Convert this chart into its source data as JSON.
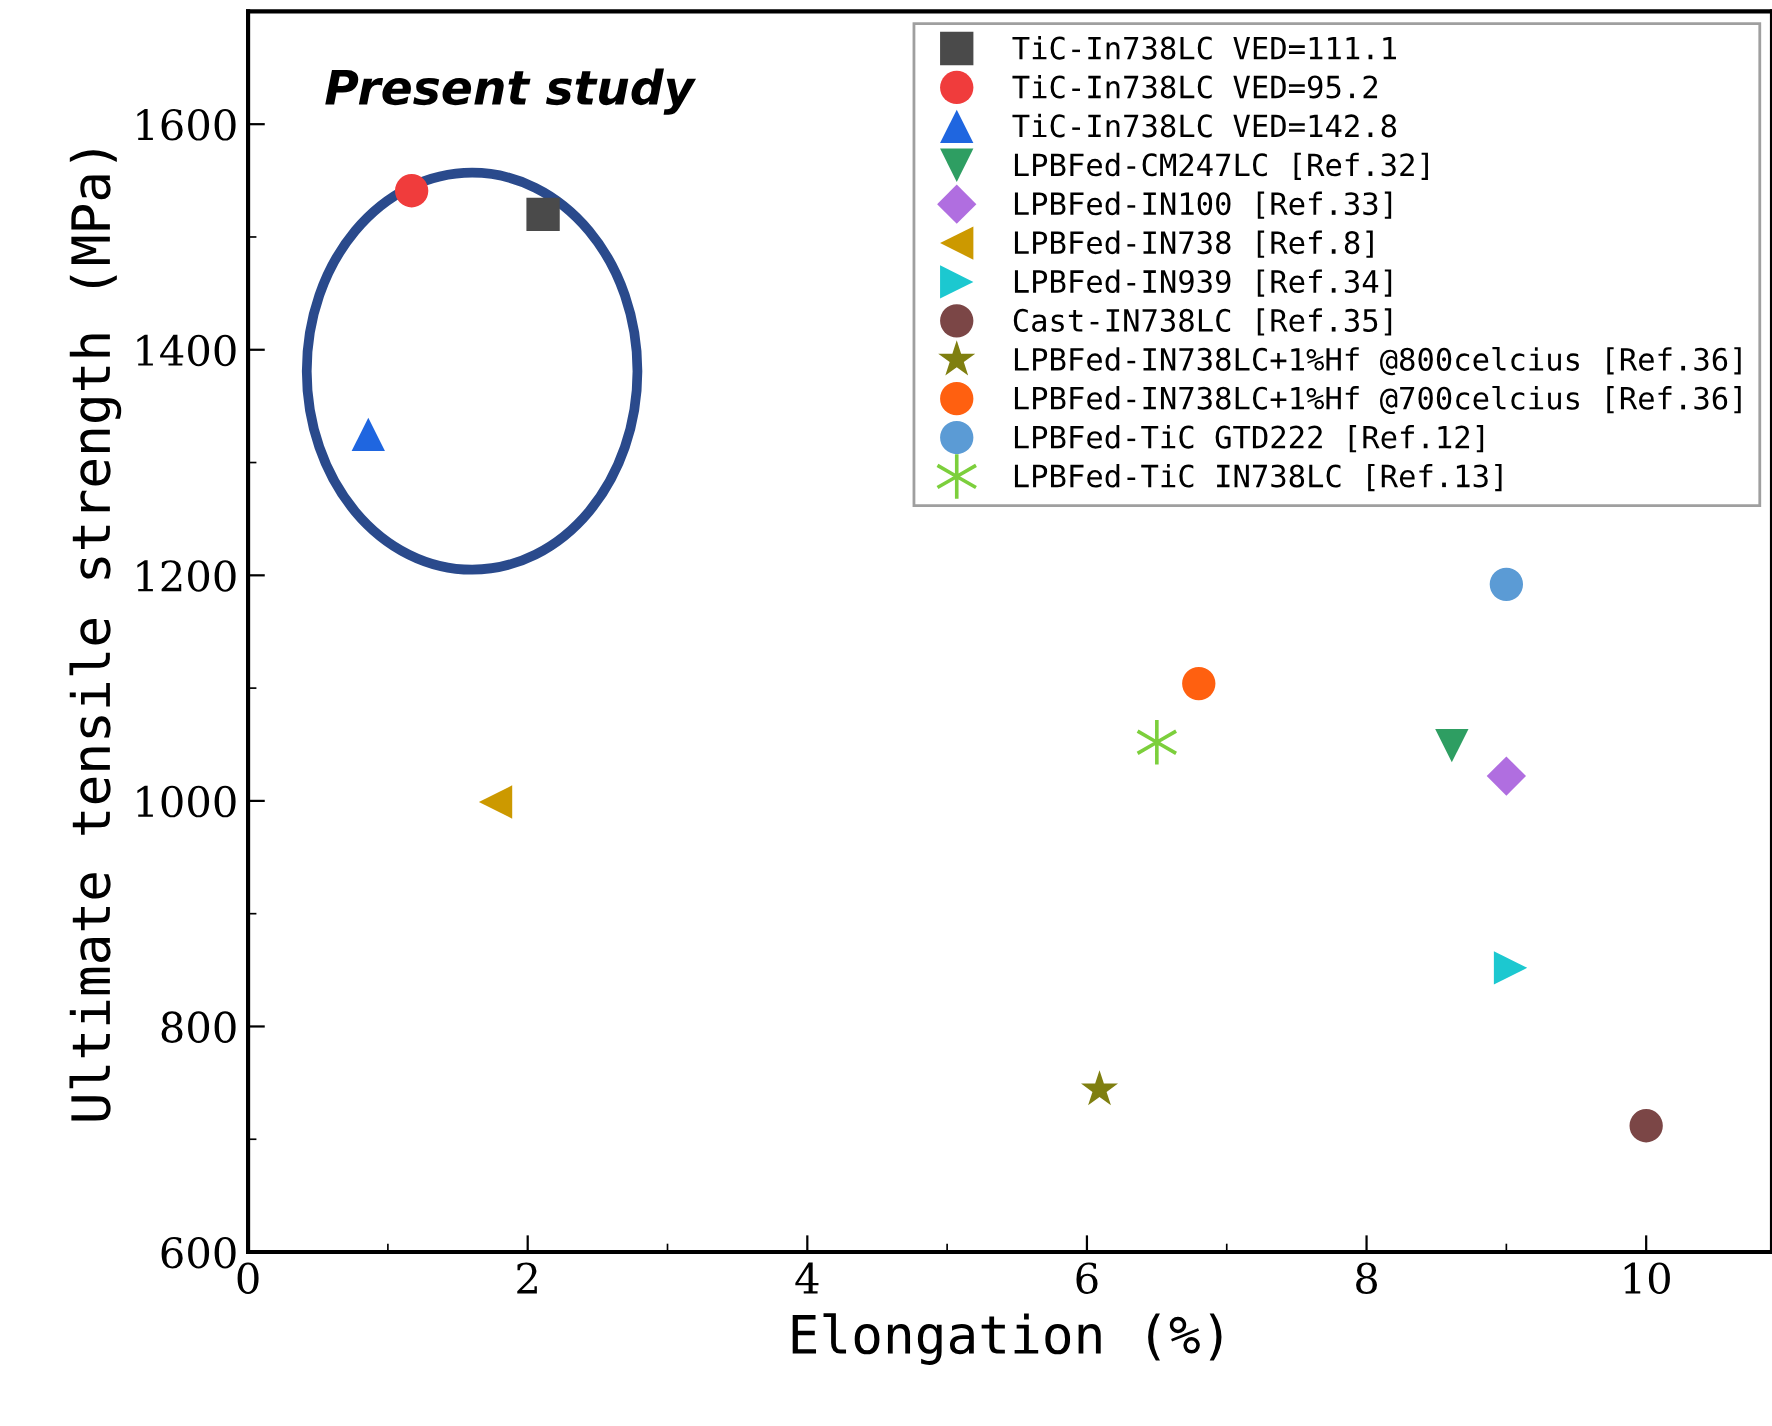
{
  "chart_data": {
    "type": "scatter",
    "xlabel": "Elongation (%)",
    "ylabel": "Ultimate tensile strength (MPa)",
    "xlim": [
      0,
      10.9
    ],
    "ylim": [
      600,
      1700
    ],
    "xticks": [
      0,
      2,
      4,
      6,
      8,
      10
    ],
    "yticks": [
      600,
      800,
      1000,
      1200,
      1400,
      1600
    ],
    "grid": false,
    "legend": "top right",
    "annotations": [
      "Present study"
    ],
    "series": [
      {
        "name": "TiC-In738LC VED=111.1",
        "color": "#4a4a4a",
        "marker": "square",
        "x": [
          2.11
        ],
        "values": [
          1520
        ]
      },
      {
        "name": "TiC-In738LC VED=95.2",
        "color": "#f03c3c",
        "marker": "circle",
        "x": [
          1.17
        ],
        "values": [
          1541
        ]
      },
      {
        "name": "TiC-In738LC VED=142.8",
        "color": "#1f66e0",
        "marker": "triangle",
        "x": [
          0.86
        ],
        "values": [
          1325
        ]
      },
      {
        "name": "LPBFed-CM247LC [Ref.32]",
        "color": "#2e9e62",
        "marker": "triangle_down",
        "x": [
          8.61
        ],
        "values": [
          1049
        ]
      },
      {
        "name": "LPBFed-IN100 [Ref.33]",
        "color": "#b06ee0",
        "marker": "diamond",
        "x": [
          9.0
        ],
        "values": [
          1022
        ]
      },
      {
        "name": "LPBFed-IN738 [Ref.8]",
        "color": "#cc9900",
        "marker": "triangle_left",
        "x": [
          1.77
        ],
        "values": [
          999
        ]
      },
      {
        "name": "LPBFed-IN939 [Ref.34]",
        "color": "#1cc8d0",
        "marker": "triangle_right",
        "x": [
          9.03
        ],
        "values": [
          852
        ]
      },
      {
        "name": "Cast-IN738LC [Ref.35]",
        "color": "#7b4646",
        "x": [
          10.0
        ],
        "values": [
          712
        ]
      },
      {
        "name": "LPBFed-IN738LC+1%Hf @800celcius [Ref.36]",
        "color": "#7f7f10",
        "marker": "star",
        "x": [
          6.09
        ],
        "values": [
          744
        ]
      },
      {
        "name": "LPBFed-IN738LC+1%Hf @700celcius [Ref.36]",
        "color": "#ff6010",
        "x": [
          6.8
        ],
        "values": [
          1104
        ]
      },
      {
        "name": "LPBFed-TiC GTD222 [Ref.12]",
        "color": "#5b9bd5",
        "marker": "circle",
        "x": [
          9.0
        ],
        "values": [
          1192
        ]
      },
      {
        "name": "LPBFed-TiC IN738LC [Ref.13]",
        "color": "#7ccf3c",
        "marker": "cross",
        "x": [
          6.5
        ],
        "values": [
          1052
        ]
      }
    ]
  }
}
